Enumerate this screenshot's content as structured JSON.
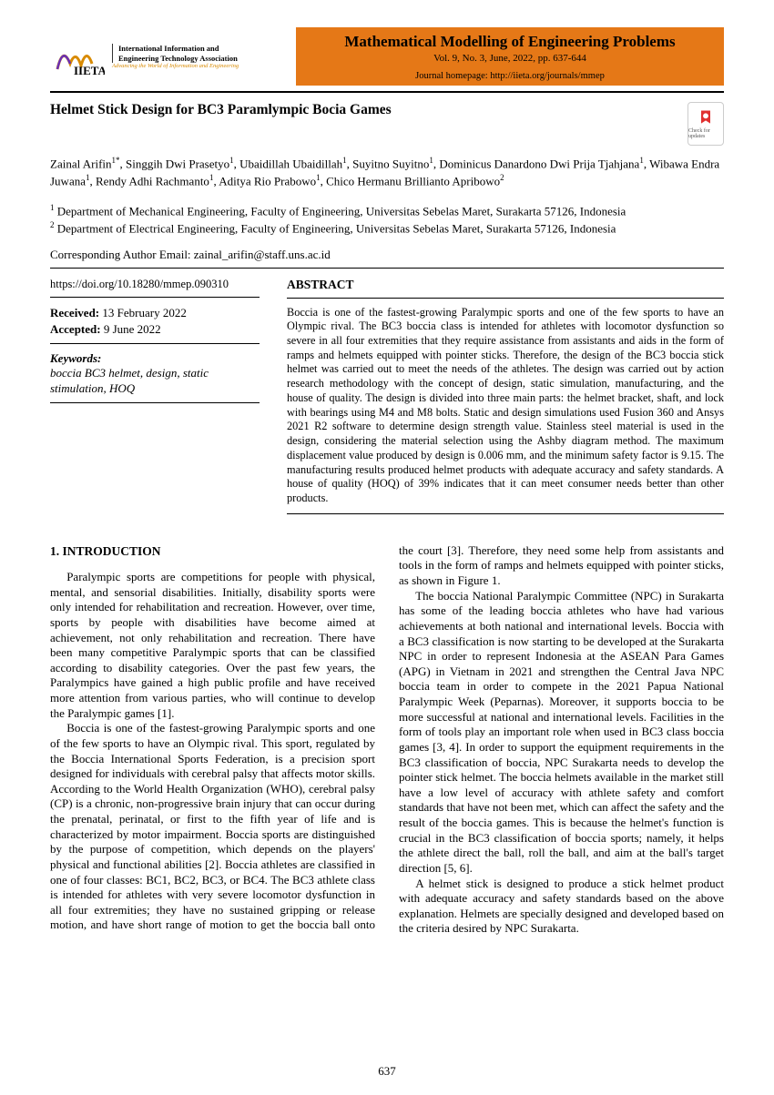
{
  "logo": {
    "assoc_line1": "International Information and",
    "assoc_line2": "Engineering Technology Association",
    "tagline": "Advancing the World of Information and Engineering"
  },
  "journal": {
    "name": "Mathematical Modelling of Engineering Problems",
    "vol": "Vol. 9, No. 3, June, 2022, pp. 637-644",
    "homepage": "Journal homepage: http://iieta.org/journals/mmep",
    "banner_color": "#e57817"
  },
  "article": {
    "title": "Helmet Stick Design for BC3 Paramlympic Bocia Games",
    "authors_html": "Zainal Arifin<sup>1*</sup>, Singgih Dwi Prasetyo<sup>1</sup>, Ubaidillah Ubaidillah<sup>1</sup>, Suyitno Suyitno<sup>1</sup>, Dominicus Danardono Dwi Prija Tjahjana<sup>1</sup>, Wibawa Endra Juwana<sup>1</sup>, Rendy Adhi Rachmanto<sup>1</sup>, Aditya Rio Prabowo<sup>1</sup>, Chico Hermanu Brillianto Apribowo<sup>2</sup>",
    "affil1": "<sup>1</sup> Department of Mechanical Engineering, Faculty of Engineering, Universitas Sebelas Maret, Surakarta 57126, Indonesia",
    "affil2": "<sup>2</sup> Department of Electrical Engineering, Faculty of Engineering, Universitas Sebelas Maret, Surakarta 57126, Indonesia",
    "corresponding": "Corresponding Author Email: zainal_arifin@staff.uns.ac.id",
    "doi": "https://doi.org/10.18280/mmep.090310",
    "received": "13 February 2022",
    "accepted": "9 June 2022",
    "keywords_header": "Keywords:",
    "keywords": "boccia BC3 helmet, design, static stimulation, HOQ",
    "check_label": "Check for updates"
  },
  "abstract": {
    "header": "ABSTRACT",
    "body": "Boccia is one of the fastest-growing Paralympic sports and one of the few sports to have an Olympic rival. The BC3 boccia class is intended for athletes with locomotor dysfunction so severe in all four extremities that they require assistance from assistants and aids in the form of ramps and helmets equipped with pointer sticks. Therefore, the design of the BC3 boccia stick helmet was carried out to meet the needs of the athletes. The design was carried out by action research methodology with the concept of design, static simulation, manufacturing, and the house of quality. The design is divided into three main parts: the helmet bracket, shaft, and lock with bearings using M4 and M8 bolts. Static and design simulations used Fusion 360 and Ansys 2021 R2 software to determine design strength value. Stainless steel material is used in the design, considering the material selection using the Ashby diagram method. The maximum displacement value produced by design is 0.006 mm, and the minimum safety factor is 9.15. The manufacturing results produced helmet products with adequate accuracy and safety standards. A house of quality (HOQ) of 39% indicates that it can meet consumer needs better than other products."
  },
  "body": {
    "section_heading": "1. INTRODUCTION",
    "p1": "Paralympic sports are competitions for people with physical, mental, and sensorial disabilities. Initially, disability sports were only intended for rehabilitation and recreation. However, over time, sports by people with disabilities have become aimed at achievement, not only rehabilitation and recreation. There have been many competitive Paralympic sports that can be classified according to disability categories. Over the past few years, the Paralympics have gained a high public profile and have received more attention from various parties, who will continue to develop the Paralympic games [1].",
    "p2": "Boccia is one of the fastest-growing Paralympic sports and one of the few sports to have an Olympic rival. This sport, regulated by the Boccia International Sports Federation, is a precision sport designed for individuals with cerebral palsy that affects motor skills. According to the World Health Organization (WHO), cerebral palsy (CP) is a chronic, non-progressive brain injury that can occur during the prenatal, perinatal, or first to the fifth year of life and is characterized by motor impairment. Boccia sports are distinguished by the purpose of competition, which depends on the players' physical and functional abilities [2]. Boccia athletes are classified in one of four classes: BC1, BC2, BC3, or BC4. The BC3 athlete class is intended for athletes with very severe locomotor dysfunction in all four extremities; they have no sustained gripping or release motion, and have short range of motion to get the boccia ball onto the court [3]. Therefore, they need some help from assistants and tools in the form of ramps and helmets equipped with pointer sticks, as shown in Figure 1.",
    "p3": "The boccia National Paralympic Committee (NPC) in Surakarta has some of the leading boccia athletes who have had various achievements at both national and international levels. Boccia with a BC3 classification is now starting to be developed at the Surakarta NPC in order to represent Indonesia at the ASEAN Para Games (APG) in Vietnam in 2021 and strengthen the Central Java NPC boccia team in order to compete in the 2021 Papua National Paralympic Week (Peparnas). Moreover, it supports boccia to be more successful at national and international levels. Facilities in the form of tools play an important role when used in BC3 class boccia games [3, 4]. In order to support the equipment requirements in the BC3 classification of boccia, NPC Surakarta needs to develop the pointer stick helmet. The boccia helmets available in the market still have a low level of accuracy with athlete safety and comfort standards that have not been met, which can affect the safety and the result of the boccia games. This is because the helmet's function is crucial in the BC3 classification of boccia sports; namely, it helps the athlete direct the ball, roll the ball, and aim at the ball's target direction [5, 6].",
    "p4": "A helmet stick is designed to produce a stick helmet product with adequate accuracy and safety standards based on the above explanation. Helmets are specially designed and developed based on the criteria desired by NPC Surakarta."
  },
  "labels": {
    "received": "Received:",
    "accepted": "Accepted:"
  },
  "page_number": "637"
}
